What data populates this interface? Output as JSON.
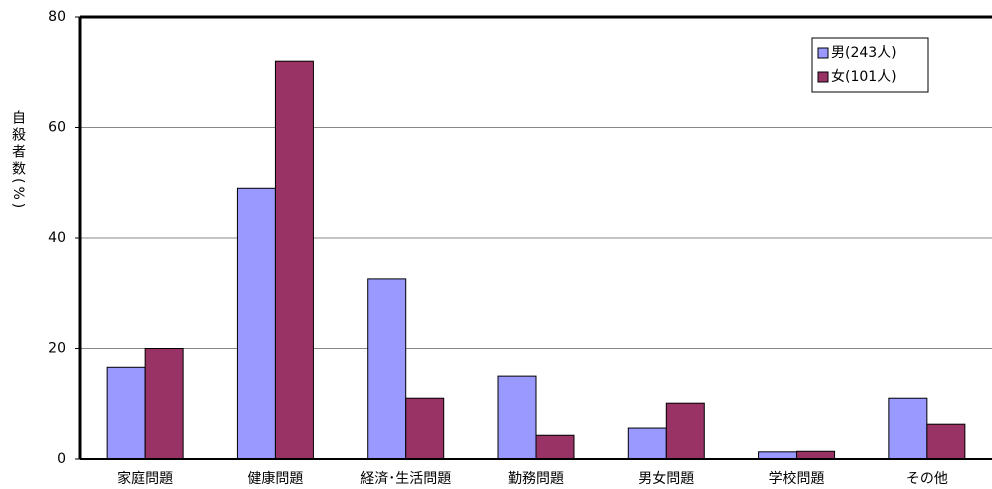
{
  "chart_data": {
    "type": "bar",
    "y_label": "自殺者数(%)",
    "categories": [
      "家庭問題",
      "健康問題",
      "経済･生活問題",
      "勤務問題",
      "男女問題",
      "学校問題",
      "その他"
    ],
    "series": [
      {
        "name": "男(243人)",
        "color": "#9999ff",
        "values": [
          16.6,
          49,
          32.6,
          15,
          5.6,
          1.3,
          11
        ]
      },
      {
        "name": "女(101人)",
        "color": "#993366",
        "values": [
          20,
          72,
          11,
          4.3,
          10.1,
          1.4,
          6.3
        ]
      }
    ],
    "ylim": [
      0,
      80
    ],
    "yticks": [
      0,
      20,
      40,
      60,
      80
    ],
    "grid": true
  }
}
